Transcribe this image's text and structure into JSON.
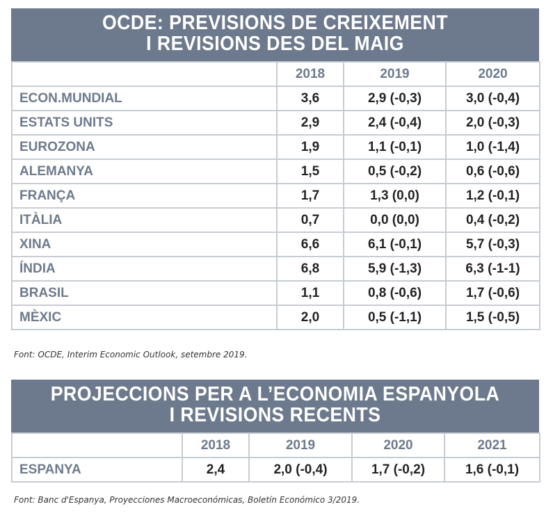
{
  "table1": {
    "title_line1": "OCDE: PREVISIONS DE CREIXEMENT",
    "title_line2": "I REVISIONS DES DEL MAIG",
    "headers": [
      "",
      "2018",
      "2019",
      "2020"
    ],
    "rows": [
      {
        "label": "ECON.MUNDIAL",
        "v2018": "3,6",
        "v2019": "2,9 (-0,3)",
        "v2020": "3,0 (-0,4)"
      },
      {
        "label": "ESTATS UNITS",
        "v2018": "2,9",
        "v2019": "2,4  (-0,4)",
        "v2020": "2,0 (-0,3)"
      },
      {
        "label": "EUROZONA",
        "v2018": "1,9",
        "v2019": "1,1  (-0,1)",
        "v2020": "1,0 (-1,4)"
      },
      {
        "label": "ALEMANYA",
        "v2018": "1,5",
        "v2019": "0,5 (-0,2)",
        "v2020": "0,6 (-0,6)"
      },
      {
        "label": "FRANÇA",
        "v2018": "1,7",
        "v2019": "1,3 (0,0)",
        "v2020": "1,2 (-0,1)"
      },
      {
        "label": "ITÀLIA",
        "v2018": "0,7",
        "v2019": "0,0 (0,0)",
        "v2020": "0,4 (-0,2)"
      },
      {
        "label": "XINA",
        "v2018": "6,6",
        "v2019": "6,1 (-0,1)",
        "v2020": "5,7 (-0,3)"
      },
      {
        "label": "ÍNDIA",
        "v2018": "6,8",
        "v2019": "5,9 (-1,3)",
        "v2020": "6,3 (-1-1)"
      },
      {
        "label": "BRASIL",
        "v2018": "1,1",
        "v2019": "0,8 (-0,6)",
        "v2020": "1,7 (-0,6)"
      },
      {
        "label": "MÈXIC",
        "v2018": "2,0",
        "v2019": "0,5 (-1,1)",
        "v2020": "1,5 (-0,5)"
      }
    ],
    "source": "Font: OCDE, Interim Economic Outlook, setembre 2019."
  },
  "table2": {
    "title_line1": "PROJECCIONS PER A L’ECONOMIA ESPANYOLA",
    "title_line2": "I REVISIONS RECENTS",
    "headers": [
      "",
      "2018",
      "2019",
      "2020",
      "2021"
    ],
    "rows": [
      {
        "label": "ESPANYA",
        "v2018": "2,4",
        "v2019": "2,0 (-0,4)",
        "v2020": "1,7 (-0,2)",
        "v2021": "1,6 (-0,1)"
      }
    ],
    "source": "Font: Banc d'Espanya, Proyecciones Macroeconómicas, Boletín Económico 3/2019."
  },
  "colors": {
    "banner": "#6d7a8d",
    "label_text": "#6d7a8d",
    "grid": "#c7ccd3",
    "value_text": "#222222"
  }
}
